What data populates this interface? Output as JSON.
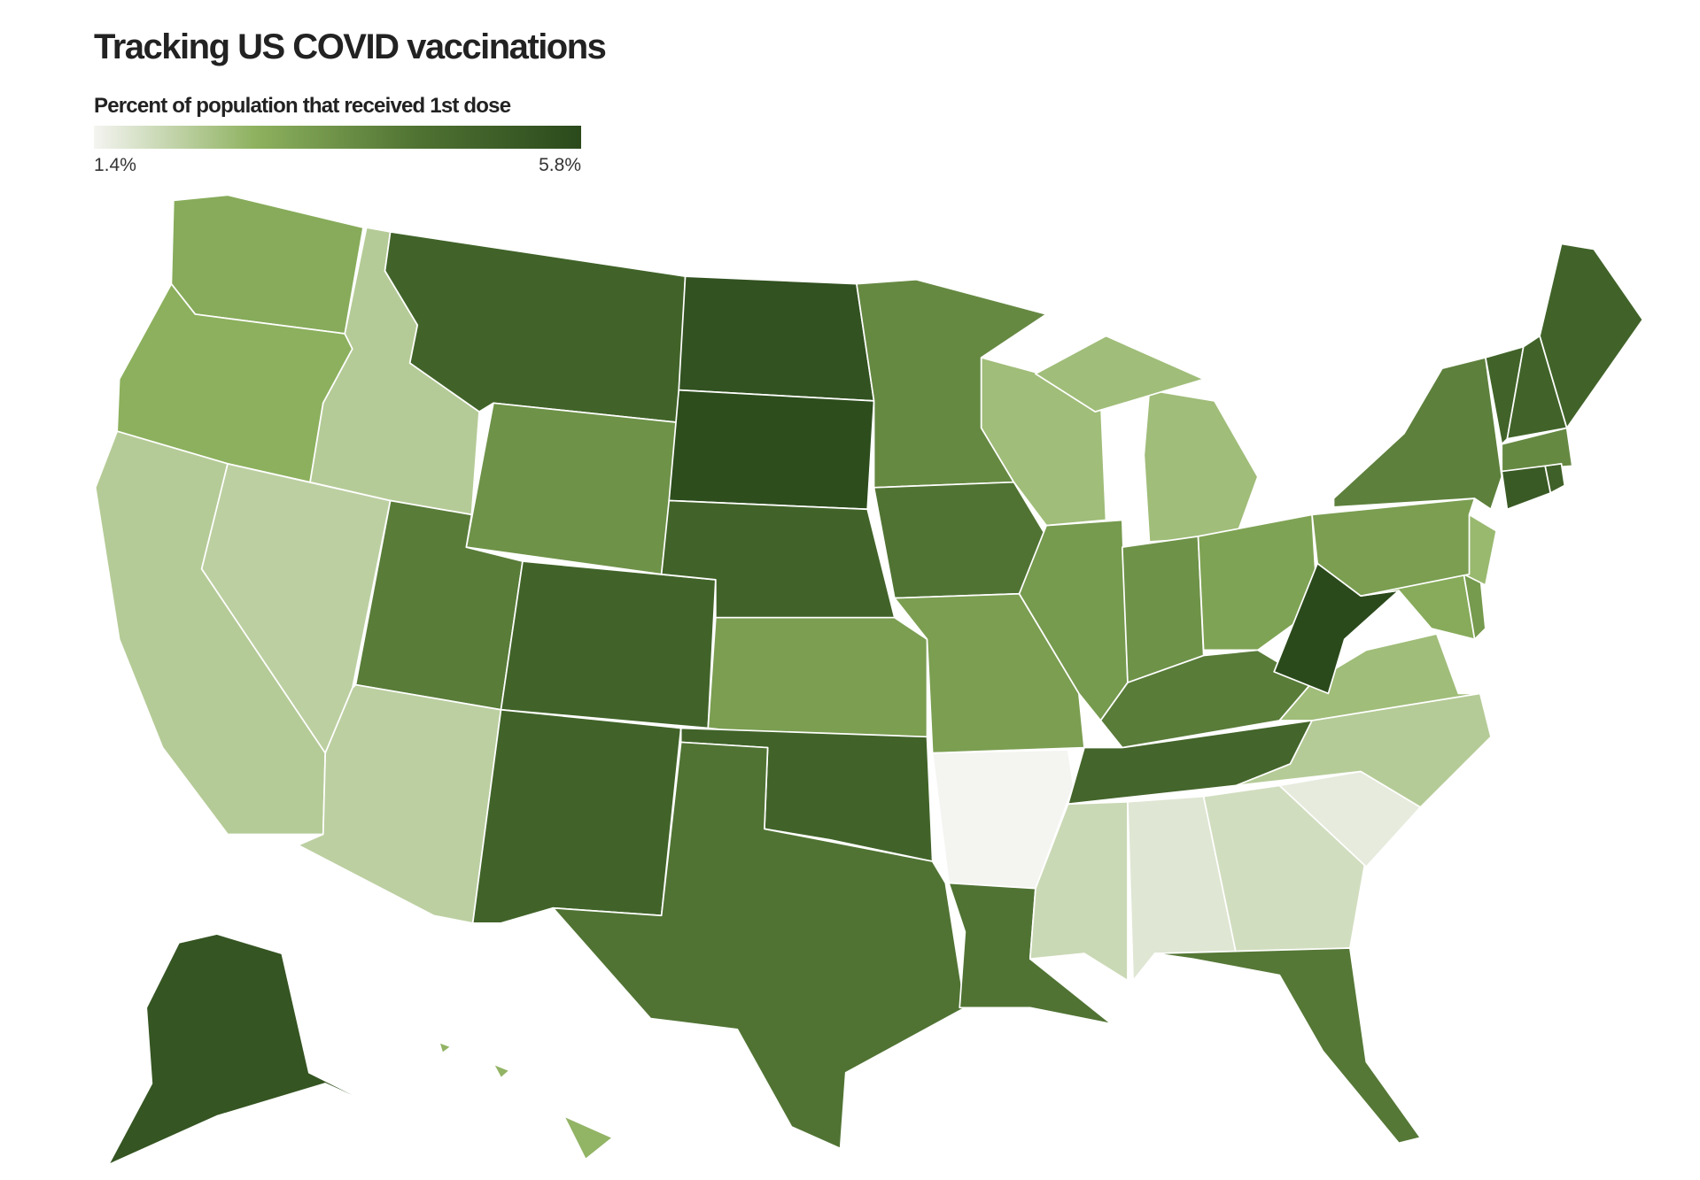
{
  "title": "Tracking US COVID vaccinations",
  "legend": {
    "title": "Percent of population that received 1st dose",
    "min": {
      "value": 1.4,
      "label": "1.4%"
    },
    "max": {
      "value": 5.8,
      "label": "5.8%"
    },
    "colors": [
      "#f4f4f1",
      "#8db15e",
      "#4f7232",
      "#2b4a1c"
    ]
  },
  "states": {
    "WA": 3.0,
    "OR": 2.9,
    "CA": 2.3,
    "NV": 2.2,
    "ID": 2.3,
    "MT": 4.9,
    "WY": 3.6,
    "UT": 4.1,
    "CO": 4.9,
    "AZ": 2.2,
    "NM": 4.9,
    "ND": 5.5,
    "SD": 5.7,
    "NE": 4.9,
    "KS": 3.3,
    "OK": 4.9,
    "TX": 4.3,
    "MN": 3.8,
    "IA": 4.3,
    "MO": 3.3,
    "AR": 1.4,
    "LA": 4.3,
    "WI": 2.6,
    "IL": 3.4,
    "MI": 2.6,
    "IN": 3.6,
    "OH": 3.2,
    "KY": 4.1,
    "TN": 4.8,
    "MS": 2.0,
    "AL": 1.7,
    "GA": 1.9,
    "FL": 4.2,
    "SC": 1.6,
    "NC": 2.3,
    "VA": 2.6,
    "WV": 5.8,
    "MD": 3.0,
    "DE": 3.4,
    "NJ": 2.7,
    "PA": 3.3,
    "NY": 4.0,
    "VT": 4.9,
    "NH": 4.9,
    "ME": 4.9,
    "MA": 3.8,
    "CT": 5.2,
    "RI": 5.0,
    "AK": 5.4,
    "HI": 2.8
  }
}
